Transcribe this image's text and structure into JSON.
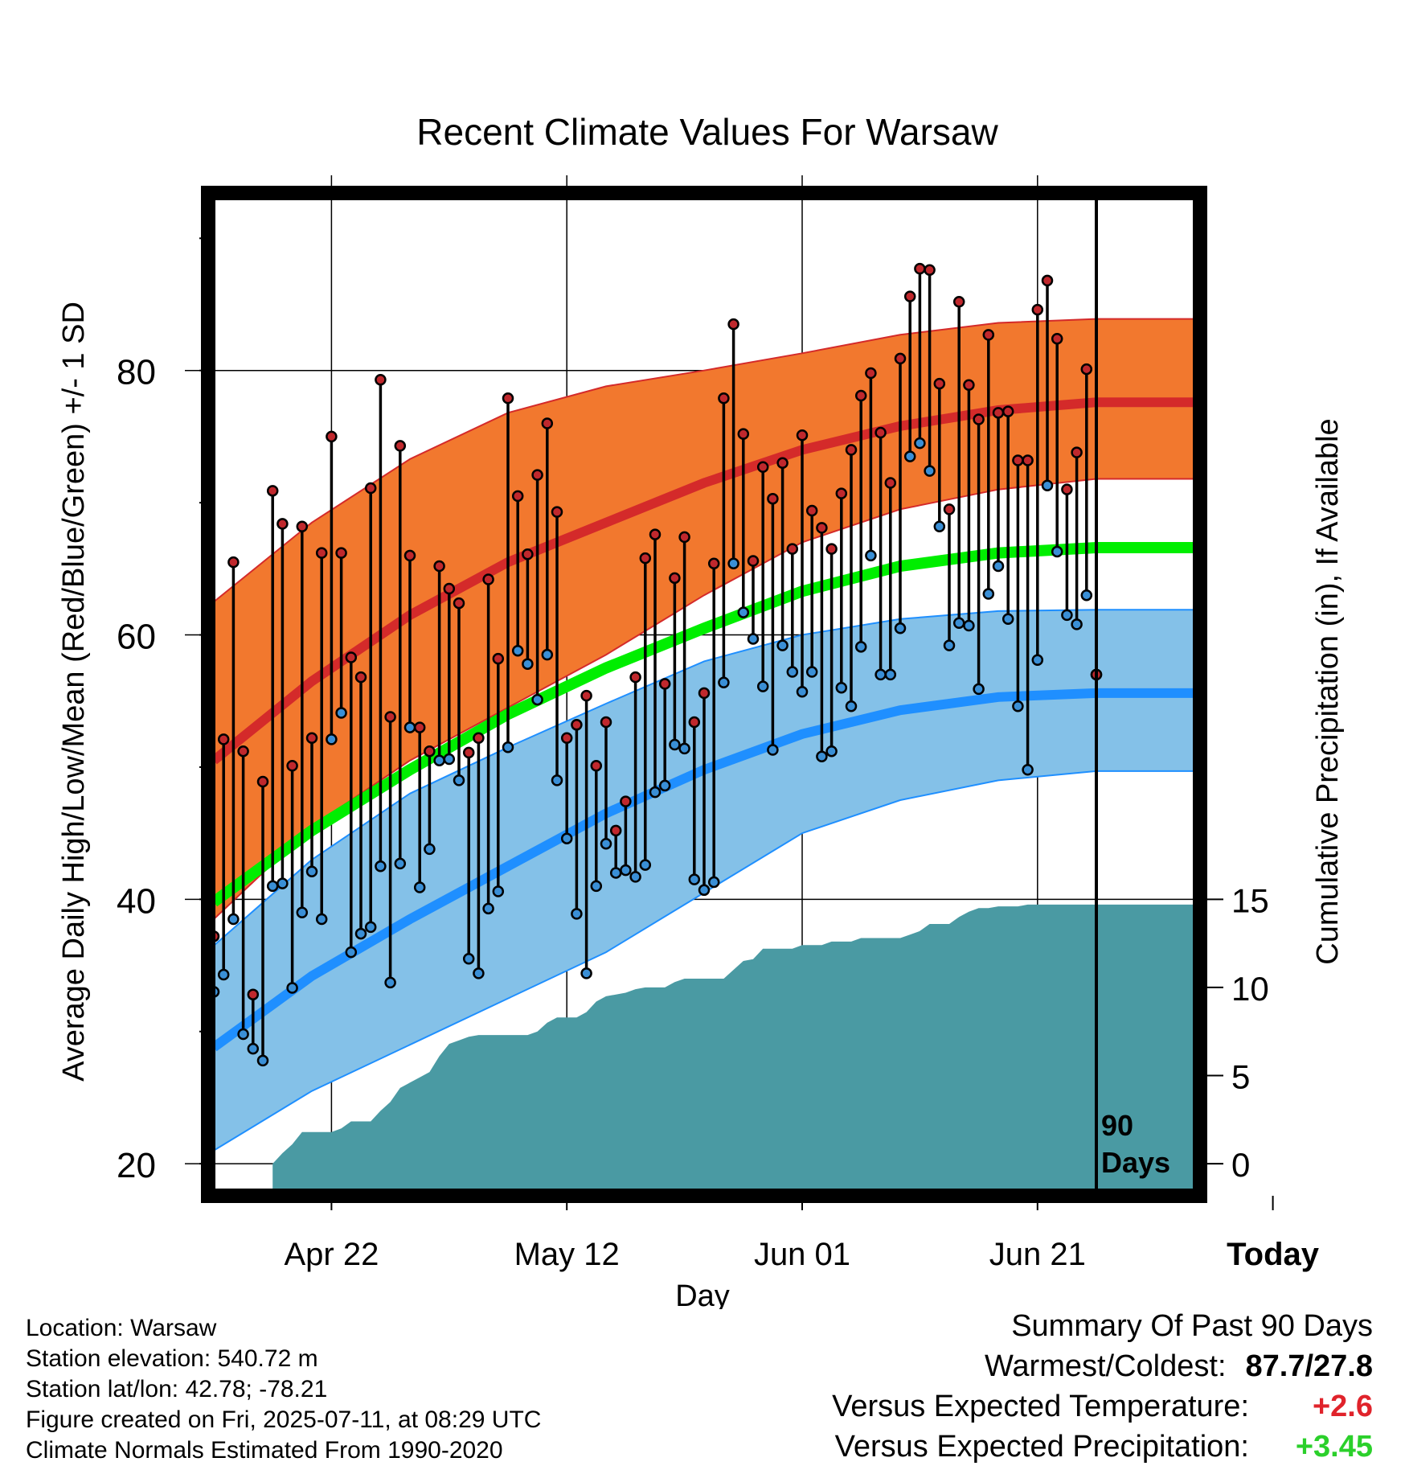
{
  "chart_data": {
    "type": "line",
    "title": "Recent Climate Values For Warsaw",
    "xlabel": "Day",
    "ylabel": "Average Daily High/Low/Mean (Red/Blue/Green) +/- 1 SD",
    "ylabel_right": "Cumulative Precipitation (in), If Available",
    "x_tick_labels": [
      "Apr 22",
      "May 12",
      "Jun 01",
      "Jun 21",
      "Today"
    ],
    "y_ticks": [
      20,
      40,
      60,
      80
    ],
    "y2_ticks": [
      0,
      5,
      10,
      15
    ],
    "ylim": [
      18,
      93
    ],
    "y2lim": [
      0,
      15
    ],
    "today_marker": "90\nDays",
    "colors": {
      "high": "#d42a2a",
      "high_band": "#f2782e",
      "low": "#1f8fff",
      "low_band": "#84c1e8",
      "mean": "#00ee00",
      "precip": "#4a9aa3",
      "high_point": "#c0282d",
      "low_point": "#3a8fd6"
    },
    "normals": {
      "day_offsets": [
        0,
        10,
        20,
        30,
        40,
        50,
        60,
        70,
        80,
        90,
        100
      ],
      "high": [
        50.5,
        56.5,
        61.5,
        65.5,
        68.5,
        71.5,
        74.0,
        75.8,
        77.0,
        77.6,
        77.6
      ],
      "high_sd_upper": [
        62.5,
        68.5,
        73.3,
        76.8,
        78.8,
        80.0,
        81.3,
        82.7,
        83.6,
        83.9,
        83.9
      ],
      "high_sd_lower": [
        38.5,
        45.5,
        50.5,
        54.5,
        58.5,
        63.0,
        67.0,
        69.5,
        71.0,
        71.8,
        71.8
      ],
      "low": [
        28.8,
        34.2,
        38.5,
        42.5,
        46.5,
        49.8,
        52.5,
        54.3,
        55.3,
        55.6,
        55.6
      ],
      "low_sd_upper": [
        36.5,
        43.0,
        48.0,
        51.5,
        54.8,
        58.0,
        60.0,
        61.2,
        61.8,
        61.9,
        61.9
      ],
      "low_sd_lower": [
        21.0,
        25.5,
        29.0,
        32.5,
        36.0,
        40.5,
        45.0,
        47.5,
        49.0,
        49.7,
        49.7
      ],
      "mean": [
        39.8,
        45.2,
        49.8,
        54.0,
        57.5,
        60.5,
        63.3,
        65.2,
        66.2,
        66.6,
        66.6
      ]
    },
    "observed": {
      "day_offsets": [
        0,
        1,
        2,
        3,
        4,
        5,
        6,
        7,
        8,
        9,
        10,
        11,
        12,
        13,
        14,
        15,
        16,
        17,
        18,
        19,
        20,
        21,
        22,
        23,
        24,
        25,
        26,
        27,
        28,
        29,
        30,
        31,
        32,
        33,
        34,
        35,
        36,
        37,
        38,
        39,
        40,
        41,
        42,
        43,
        44,
        45,
        46,
        47,
        48,
        49,
        50,
        51,
        52,
        53,
        54,
        55,
        56,
        57,
        58,
        59,
        60,
        61,
        62,
        63,
        64,
        65,
        66,
        67,
        68,
        69,
        70,
        71,
        72,
        73,
        74,
        75,
        76,
        77,
        78,
        79,
        80,
        81,
        82,
        83,
        84,
        85,
        86,
        87,
        88,
        89,
        90
      ],
      "high": [
        37.2,
        52.1,
        65.5,
        51.2,
        32.8,
        48.9,
        70.9,
        68.4,
        50.1,
        68.2,
        52.2,
        66.2,
        75.0,
        66.2,
        58.3,
        56.8,
        71.1,
        79.3,
        53.8,
        74.3,
        66.0,
        53.0,
        51.2,
        65.2,
        63.5,
        62.4,
        51.1,
        52.2,
        64.2,
        58.2,
        77.9,
        70.5,
        66.1,
        72.1,
        76.0,
        69.3,
        52.2,
        53.2,
        55.4,
        50.1,
        53.4,
        45.2,
        47.4,
        56.8,
        65.8,
        67.6,
        56.3,
        64.3,
        67.4,
        53.4,
        55.6,
        65.4,
        77.9,
        83.5,
        75.2,
        65.6,
        72.7,
        70.3,
        73.0,
        66.5,
        75.1,
        69.4,
        68.1,
        66.5,
        70.7,
        74.0,
        78.1,
        79.8,
        75.3,
        71.5,
        80.9,
        85.6,
        87.7,
        87.6,
        79.0,
        69.5,
        85.2,
        78.9,
        76.3,
        82.7,
        76.8,
        76.9,
        73.2,
        73.2,
        84.6,
        86.8,
        82.4,
        71.0,
        73.8,
        80.1,
        57.0
      ],
      "low": [
        33.0,
        34.3,
        38.5,
        29.8,
        28.7,
        27.8,
        41.0,
        41.2,
        33.3,
        39.0,
        42.1,
        38.5,
        52.1,
        54.1,
        36.0,
        37.4,
        37.9,
        42.5,
        33.7,
        42.7,
        53.0,
        40.9,
        43.8,
        50.5,
        50.6,
        49.0,
        35.5,
        34.4,
        39.3,
        40.6,
        51.5,
        58.8,
        57.8,
        55.1,
        58.5,
        49.0,
        44.6,
        38.9,
        34.4,
        41.0,
        44.2,
        42.0,
        42.2,
        41.7,
        42.6,
        48.1,
        48.6,
        51.7,
        51.4,
        41.5,
        40.7,
        41.3,
        56.4,
        65.4,
        61.7,
        59.7,
        56.1,
        51.3,
        59.2,
        57.2,
        55.7,
        57.2,
        50.8,
        51.2,
        56.0,
        54.6,
        59.1,
        66.0,
        57.0,
        57.0,
        60.5,
        73.5,
        74.5,
        72.4,
        68.2,
        59.2,
        60.9,
        60.7,
        55.9,
        63.1,
        65.2,
        61.2,
        54.6,
        49.8,
        58.1,
        71.3,
        66.3,
        61.5,
        60.8,
        63.0,
        57.0
      ]
    },
    "precipitation": {
      "day_offsets": [
        6,
        7,
        8,
        9,
        10,
        11,
        12,
        13,
        14,
        15,
        16,
        17,
        18,
        19,
        20,
        21,
        22,
        23,
        24,
        25,
        26,
        27,
        28,
        29,
        30,
        31,
        32,
        33,
        34,
        35,
        36,
        37,
        38,
        39,
        40,
        41,
        42,
        43,
        44,
        45,
        46,
        47,
        48,
        49,
        50,
        51,
        52,
        53,
        54,
        55,
        56,
        57,
        58,
        59,
        60,
        61,
        62,
        63,
        64,
        65,
        66,
        67,
        68,
        69,
        70,
        71,
        72,
        73,
        74,
        75,
        76,
        77,
        78,
        79,
        80,
        81,
        82,
        83,
        84,
        85,
        86,
        87,
        88,
        89,
        90,
        91,
        92,
        93,
        94,
        95,
        96,
        97,
        98,
        99,
        100
      ],
      "cumulative": [
        0,
        0.6,
        1.1,
        1.8,
        1.8,
        1.8,
        1.8,
        2.0,
        2.4,
        2.4,
        2.4,
        3.0,
        3.5,
        4.3,
        4.6,
        4.9,
        5.2,
        6.1,
        6.8,
        7.0,
        7.2,
        7.3,
        7.3,
        7.3,
        7.3,
        7.3,
        7.3,
        7.5,
        8.0,
        8.3,
        8.3,
        8.3,
        8.6,
        9.2,
        9.5,
        9.6,
        9.7,
        9.9,
        10.0,
        10.0,
        10.0,
        10.3,
        10.5,
        10.5,
        10.5,
        10.5,
        10.5,
        11.0,
        11.5,
        11.6,
        12.2,
        12.2,
        12.2,
        12.2,
        12.4,
        12.4,
        12.4,
        12.6,
        12.6,
        12.6,
        12.8,
        12.8,
        12.8,
        12.8,
        12.8,
        13.0,
        13.2,
        13.6,
        13.6,
        13.6,
        14.0,
        14.3,
        14.5,
        14.5,
        14.6,
        14.6,
        14.6,
        14.7,
        14.7,
        14.7,
        14.7,
        14.7,
        14.7,
        14.7,
        14.7,
        14.7,
        14.7,
        14.7,
        14.7,
        14.7,
        14.7,
        14.7,
        14.7,
        14.7,
        14.7
      ]
    },
    "grid": true
  },
  "footer": {
    "location": "Location: Warsaw",
    "elevation": "Station elevation: 540.72 m",
    "latlon": "Station lat/lon: 42.78; -78.21",
    "created": "Figure created on Fri, 2025-07-11, at 08:29 UTC",
    "normals": "Climate Normals Estimated From 1990-2020"
  },
  "summary": {
    "title": "Summary Of Past 90 Days",
    "warm_cold_label": "Warmest/Coldest:",
    "warm_cold_value": "87.7/27.8",
    "temp_label": "Versus Expected Temperature:",
    "temp_value": "+2.6",
    "precip_label": "Versus Expected Precipitation:",
    "precip_value": "+3.45"
  }
}
